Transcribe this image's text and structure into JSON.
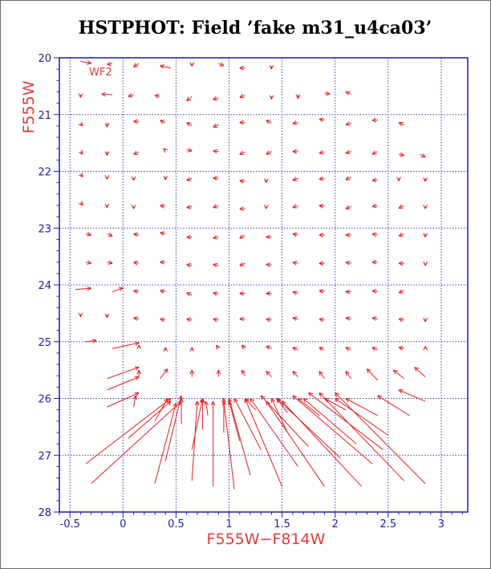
{
  "chart_data": {
    "type": "vector_field",
    "title": "HSTPHOT: Field ’fake m31_u4ca03’",
    "xlabel": "F555W−F814W",
    "ylabel": "F555W",
    "annotation": "WF2",
    "xlim": [
      -0.6,
      3.25
    ],
    "ylim": [
      28,
      20
    ],
    "x_ticks": [
      "-0.5",
      "0",
      "0.5",
      "1",
      "1.5",
      "2",
      "2.5",
      "3"
    ],
    "x_tick_values": [
      -0.5,
      0,
      0.5,
      1,
      1.5,
      2,
      2.5,
      3
    ],
    "y_ticks": [
      "20",
      "21",
      "22",
      "23",
      "24",
      "25",
      "26",
      "27",
      "28"
    ],
    "y_tick_values": [
      20,
      21,
      22,
      23,
      24,
      25,
      26,
      27,
      28
    ],
    "grid": true,
    "colors": {
      "axis": "#1f1f9f",
      "grid": "#3c3cd2",
      "vectors": "#e02020",
      "labels": "#e03c3c",
      "title": "#000000"
    },
    "vectors": [
      {
        "x": -0.4,
        "y": 20.06,
        "x2": -0.3,
        "y2": 20.1
      },
      {
        "x": -0.1,
        "y": 20.1,
        "x2": -0.15,
        "y2": 20.12
      },
      {
        "x": 0.15,
        "y": 20.1,
        "x2": 0.1,
        "y2": 20.16
      },
      {
        "x": 0.45,
        "y": 20.18,
        "x2": 0.35,
        "y2": 20.14
      },
      {
        "x": 0.65,
        "y": 20.1,
        "x2": 0.65,
        "y2": 20.15
      },
      {
        "x": 0.9,
        "y": 20.1,
        "x2": 0.95,
        "y2": 20.14
      },
      {
        "x": 1.15,
        "y": 20.18,
        "x2": 1.1,
        "y2": 20.18
      },
      {
        "x": 1.4,
        "y": 20.15,
        "x2": 1.4,
        "y2": 20.2
      },
      {
        "x": -0.4,
        "y": 20.65,
        "x2": -0.4,
        "y2": 20.7
      },
      {
        "x": -0.1,
        "y": 20.65,
        "x2": -0.2,
        "y2": 20.64
      },
      {
        "x": 0.1,
        "y": 20.65,
        "x2": 0.05,
        "y2": 20.68
      },
      {
        "x": 0.35,
        "y": 20.68,
        "x2": 0.3,
        "y2": 20.66
      },
      {
        "x": 0.65,
        "y": 20.68,
        "x2": 0.6,
        "y2": 20.76
      },
      {
        "x": 0.9,
        "y": 20.7,
        "x2": 0.85,
        "y2": 20.74
      },
      {
        "x": 1.15,
        "y": 20.66,
        "x2": 1.1,
        "y2": 20.7
      },
      {
        "x": 1.4,
        "y": 20.68,
        "x2": 1.4,
        "y2": 20.73
      },
      {
        "x": 1.65,
        "y": 20.65,
        "x2": 1.65,
        "y2": 20.72
      },
      {
        "x": 1.9,
        "y": 20.62,
        "x2": 1.95,
        "y2": 20.64
      },
      {
        "x": 2.15,
        "y": 20.64,
        "x2": 2.1,
        "y2": 20.6
      },
      {
        "x": -0.4,
        "y": 21.16,
        "x2": -0.38,
        "y2": 21.2
      },
      {
        "x": -0.15,
        "y": 21.15,
        "x2": -0.15,
        "y2": 21.22
      },
      {
        "x": 0.15,
        "y": 21.12,
        "x2": 0.1,
        "y2": 21.12
      },
      {
        "x": 0.4,
        "y": 21.15,
        "x2": 0.35,
        "y2": 21.1
      },
      {
        "x": 0.65,
        "y": 21.2,
        "x2": 0.6,
        "y2": 21.14
      },
      {
        "x": 0.9,
        "y": 21.18,
        "x2": 0.85,
        "y2": 21.22
      },
      {
        "x": 1.15,
        "y": 21.14,
        "x2": 1.1,
        "y2": 21.14
      },
      {
        "x": 1.4,
        "y": 21.15,
        "x2": 1.35,
        "y2": 21.1
      },
      {
        "x": 1.65,
        "y": 21.14,
        "x2": 1.6,
        "y2": 21.16
      },
      {
        "x": 1.9,
        "y": 21.1,
        "x2": 1.85,
        "y2": 21.08
      },
      {
        "x": 2.15,
        "y": 21.15,
        "x2": 2.1,
        "y2": 21.18
      },
      {
        "x": 2.4,
        "y": 21.1,
        "x2": 2.35,
        "y2": 21.1
      },
      {
        "x": 2.65,
        "y": 21.18,
        "x2": 2.6,
        "y2": 21.14
      },
      {
        "x": -0.4,
        "y": 21.65,
        "x2": -0.38,
        "y2": 21.7
      },
      {
        "x": -0.15,
        "y": 21.65,
        "x2": -0.15,
        "y2": 21.72
      },
      {
        "x": 0.15,
        "y": 21.66,
        "x2": 0.1,
        "y2": 21.7
      },
      {
        "x": 0.4,
        "y": 21.63,
        "x2": 0.38,
        "y2": 21.6
      },
      {
        "x": 0.6,
        "y": 21.62,
        "x2": 0.65,
        "y2": 21.64
      },
      {
        "x": 0.9,
        "y": 21.65,
        "x2": 0.85,
        "y2": 21.64
      },
      {
        "x": 1.15,
        "y": 21.66,
        "x2": 1.1,
        "y2": 21.7
      },
      {
        "x": 1.4,
        "y": 21.65,
        "x2": 1.35,
        "y2": 21.7
      },
      {
        "x": 1.65,
        "y": 21.65,
        "x2": 1.6,
        "y2": 21.65
      },
      {
        "x": 1.9,
        "y": 21.66,
        "x2": 1.85,
        "y2": 21.68
      },
      {
        "x": 2.15,
        "y": 21.65,
        "x2": 2.1,
        "y2": 21.68
      },
      {
        "x": 2.4,
        "y": 21.65,
        "x2": 2.35,
        "y2": 21.7
      },
      {
        "x": 2.6,
        "y": 21.7,
        "x2": 2.65,
        "y2": 21.72
      },
      {
        "x": 2.8,
        "y": 21.7,
        "x2": 2.85,
        "y2": 21.75
      },
      {
        "x": -0.4,
        "y": 22.05,
        "x2": -0.38,
        "y2": 22.1
      },
      {
        "x": -0.15,
        "y": 22.1,
        "x2": -0.15,
        "y2": 22.14
      },
      {
        "x": 0.1,
        "y": 22.12,
        "x2": 0.1,
        "y2": 22.16
      },
      {
        "x": 0.4,
        "y": 22.1,
        "x2": 0.4,
        "y2": 22.15
      },
      {
        "x": 0.65,
        "y": 22.12,
        "x2": 0.6,
        "y2": 22.16
      },
      {
        "x": 0.9,
        "y": 22.12,
        "x2": 0.85,
        "y2": 22.12
      },
      {
        "x": 1.15,
        "y": 22.18,
        "x2": 1.1,
        "y2": 22.16
      },
      {
        "x": 1.35,
        "y": 22.15,
        "x2": 1.35,
        "y2": 22.2
      },
      {
        "x": 1.65,
        "y": 22.12,
        "x2": 1.6,
        "y2": 22.16
      },
      {
        "x": 1.9,
        "y": 22.12,
        "x2": 1.85,
        "y2": 22.14
      },
      {
        "x": 2.15,
        "y": 22.1,
        "x2": 2.1,
        "y2": 22.15
      },
      {
        "x": 2.4,
        "y": 22.15,
        "x2": 2.35,
        "y2": 22.16
      },
      {
        "x": 2.6,
        "y": 22.12,
        "x2": 2.6,
        "y2": 22.17
      },
      {
        "x": 2.85,
        "y": 22.12,
        "x2": 2.85,
        "y2": 22.18
      },
      {
        "x": -0.4,
        "y": 22.55,
        "x2": -0.38,
        "y2": 22.6
      },
      {
        "x": -0.15,
        "y": 22.6,
        "x2": -0.15,
        "y2": 22.64
      },
      {
        "x": 0.1,
        "y": 22.62,
        "x2": 0.1,
        "y2": 22.66
      },
      {
        "x": 0.4,
        "y": 22.62,
        "x2": 0.35,
        "y2": 22.6
      },
      {
        "x": 0.65,
        "y": 22.62,
        "x2": 0.6,
        "y2": 22.64
      },
      {
        "x": 0.9,
        "y": 22.6,
        "x2": 0.85,
        "y2": 22.64
      },
      {
        "x": 1.15,
        "y": 22.66,
        "x2": 1.1,
        "y2": 22.66
      },
      {
        "x": 1.35,
        "y": 22.62,
        "x2": 1.35,
        "y2": 22.66
      },
      {
        "x": 1.65,
        "y": 22.6,
        "x2": 1.6,
        "y2": 22.64
      },
      {
        "x": 1.9,
        "y": 22.62,
        "x2": 1.85,
        "y2": 22.6
      },
      {
        "x": 2.15,
        "y": 22.62,
        "x2": 2.1,
        "y2": 22.66
      },
      {
        "x": 2.4,
        "y": 22.6,
        "x2": 2.35,
        "y2": 22.62
      },
      {
        "x": 2.65,
        "y": 22.6,
        "x2": 2.6,
        "y2": 22.65
      },
      {
        "x": 2.85,
        "y": 22.62,
        "x2": 2.85,
        "y2": 22.66
      },
      {
        "x": -0.35,
        "y": 23.1,
        "x2": -0.3,
        "y2": 23.12
      },
      {
        "x": -0.15,
        "y": 23.1,
        "x2": -0.1,
        "y2": 23.14
      },
      {
        "x": 0.15,
        "y": 23.12,
        "x2": 0.1,
        "y2": 23.1
      },
      {
        "x": 0.4,
        "y": 23.1,
        "x2": 0.35,
        "y2": 23.08
      },
      {
        "x": 0.65,
        "y": 23.16,
        "x2": 0.6,
        "y2": 23.16
      },
      {
        "x": 0.9,
        "y": 23.15,
        "x2": 0.85,
        "y2": 23.18
      },
      {
        "x": 1.15,
        "y": 23.12,
        "x2": 1.1,
        "y2": 23.18
      },
      {
        "x": 1.4,
        "y": 23.15,
        "x2": 1.35,
        "y2": 23.16
      },
      {
        "x": 1.65,
        "y": 23.12,
        "x2": 1.6,
        "y2": 23.1
      },
      {
        "x": 1.9,
        "y": 23.12,
        "x2": 1.85,
        "y2": 23.12
      },
      {
        "x": 2.15,
        "y": 23.12,
        "x2": 2.1,
        "y2": 23.12
      },
      {
        "x": 2.4,
        "y": 23.12,
        "x2": 2.35,
        "y2": 23.1
      },
      {
        "x": 2.65,
        "y": 23.1,
        "x2": 2.6,
        "y2": 23.14
      },
      {
        "x": 2.85,
        "y": 23.1,
        "x2": 2.85,
        "y2": 23.16
      },
      {
        "x": -0.35,
        "y": 23.6,
        "x2": -0.3,
        "y2": 23.62
      },
      {
        "x": -0.15,
        "y": 23.6,
        "x2": -0.1,
        "y2": 23.62
      },
      {
        "x": 0.15,
        "y": 23.62,
        "x2": 0.1,
        "y2": 23.6
      },
      {
        "x": 0.4,
        "y": 23.6,
        "x2": 0.35,
        "y2": 23.6
      },
      {
        "x": 0.65,
        "y": 23.66,
        "x2": 0.6,
        "y2": 23.64
      },
      {
        "x": 0.9,
        "y": 23.66,
        "x2": 0.85,
        "y2": 23.64
      },
      {
        "x": 1.15,
        "y": 23.62,
        "x2": 1.1,
        "y2": 23.66
      },
      {
        "x": 1.4,
        "y": 23.65,
        "x2": 1.35,
        "y2": 23.64
      },
      {
        "x": 1.65,
        "y": 23.62,
        "x2": 1.6,
        "y2": 23.6
      },
      {
        "x": 1.9,
        "y": 23.62,
        "x2": 1.85,
        "y2": 23.62
      },
      {
        "x": 2.15,
        "y": 23.62,
        "x2": 2.1,
        "y2": 23.6
      },
      {
        "x": 2.4,
        "y": 23.6,
        "x2": 2.35,
        "y2": 23.6
      },
      {
        "x": 2.65,
        "y": 23.62,
        "x2": 2.6,
        "y2": 23.62
      },
      {
        "x": 2.85,
        "y": 23.62,
        "x2": 2.85,
        "y2": 23.66
      },
      {
        "x": -0.45,
        "y": 24.08,
        "x2": -0.3,
        "y2": 24.06
      },
      {
        "x": -0.1,
        "y": 24.12,
        "x2": 0.0,
        "y2": 24.05
      },
      {
        "x": 0.15,
        "y": 24.12,
        "x2": 0.1,
        "y2": 24.1
      },
      {
        "x": 0.4,
        "y": 24.12,
        "x2": 0.35,
        "y2": 24.1
      },
      {
        "x": 0.65,
        "y": 24.18,
        "x2": 0.6,
        "y2": 24.14
      },
      {
        "x": 0.9,
        "y": 24.16,
        "x2": 0.85,
        "y2": 24.14
      },
      {
        "x": 1.15,
        "y": 24.15,
        "x2": 1.1,
        "y2": 24.15
      },
      {
        "x": 1.4,
        "y": 24.15,
        "x2": 1.35,
        "y2": 24.15
      },
      {
        "x": 1.65,
        "y": 24.15,
        "x2": 1.6,
        "y2": 24.12
      },
      {
        "x": 1.9,
        "y": 24.12,
        "x2": 1.85,
        "y2": 24.1
      },
      {
        "x": 2.15,
        "y": 24.12,
        "x2": 2.1,
        "y2": 24.12
      },
      {
        "x": 2.4,
        "y": 24.12,
        "x2": 2.35,
        "y2": 24.1
      },
      {
        "x": 2.65,
        "y": 24.1,
        "x2": 2.6,
        "y2": 24.14
      },
      {
        "x": -0.4,
        "y": 24.52,
        "x2": -0.4,
        "y2": 24.56
      },
      {
        "x": -0.15,
        "y": 24.52,
        "x2": -0.15,
        "y2": 24.58
      },
      {
        "x": 0.15,
        "y": 24.6,
        "x2": 0.1,
        "y2": 24.58
      },
      {
        "x": 0.4,
        "y": 24.62,
        "x2": 0.35,
        "y2": 24.6
      },
      {
        "x": 0.65,
        "y": 24.62,
        "x2": 0.6,
        "y2": 24.6
      },
      {
        "x": 0.9,
        "y": 24.62,
        "x2": 0.85,
        "y2": 24.6
      },
      {
        "x": 1.15,
        "y": 24.6,
        "x2": 1.1,
        "y2": 24.6
      },
      {
        "x": 1.4,
        "y": 24.62,
        "x2": 1.35,
        "y2": 24.6
      },
      {
        "x": 1.65,
        "y": 24.6,
        "x2": 1.6,
        "y2": 24.58
      },
      {
        "x": 1.9,
        "y": 24.62,
        "x2": 1.85,
        "y2": 24.6
      },
      {
        "x": 2.15,
        "y": 24.6,
        "x2": 2.1,
        "y2": 24.58
      },
      {
        "x": 2.4,
        "y": 24.6,
        "x2": 2.35,
        "y2": 24.58
      },
      {
        "x": 2.65,
        "y": 24.62,
        "x2": 2.6,
        "y2": 24.6
      },
      {
        "x": 2.85,
        "y": 24.6,
        "x2": 2.85,
        "y2": 24.65
      },
      {
        "x": -0.35,
        "y": 25.0,
        "x2": -0.25,
        "y2": 24.98
      },
      {
        "x": -0.1,
        "y": 25.12,
        "x2": 0.15,
        "y2": 25.02
      },
      {
        "x": 0.15,
        "y": 25.1,
        "x2": 0.15,
        "y2": 25.06
      },
      {
        "x": 0.4,
        "y": 25.15,
        "x2": 0.4,
        "y2": 25.1
      },
      {
        "x": 0.65,
        "y": 25.15,
        "x2": 0.65,
        "y2": 25.1
      },
      {
        "x": 0.9,
        "y": 25.12,
        "x2": 0.88,
        "y2": 25.06
      },
      {
        "x": 1.15,
        "y": 25.12,
        "x2": 1.12,
        "y2": 25.06
      },
      {
        "x": 1.4,
        "y": 25.12,
        "x2": 1.35,
        "y2": 25.08
      },
      {
        "x": 1.65,
        "y": 25.15,
        "x2": 1.6,
        "y2": 25.1
      },
      {
        "x": 1.9,
        "y": 25.15,
        "x2": 1.85,
        "y2": 25.1
      },
      {
        "x": 2.15,
        "y": 25.15,
        "x2": 2.1,
        "y2": 25.1
      },
      {
        "x": 2.4,
        "y": 25.15,
        "x2": 2.35,
        "y2": 25.1
      },
      {
        "x": 2.65,
        "y": 25.12,
        "x2": 2.6,
        "y2": 25.1
      },
      {
        "x": 2.85,
        "y": 25.12,
        "x2": 2.85,
        "y2": 25.08
      },
      {
        "x": -0.15,
        "y": 25.65,
        "x2": 0.15,
        "y2": 25.45
      },
      {
        "x": 0.15,
        "y": 25.62,
        "x2": 0.15,
        "y2": 25.5
      },
      {
        "x": 0.35,
        "y": 25.65,
        "x2": 0.42,
        "y2": 25.48
      },
      {
        "x": 0.65,
        "y": 25.62,
        "x2": 0.65,
        "y2": 25.5
      },
      {
        "x": 0.9,
        "y": 25.62,
        "x2": 0.9,
        "y2": 25.5
      },
      {
        "x": 1.15,
        "y": 25.6,
        "x2": 1.12,
        "y2": 25.5
      },
      {
        "x": 1.4,
        "y": 25.62,
        "x2": 1.35,
        "y2": 25.52
      },
      {
        "x": 1.65,
        "y": 25.62,
        "x2": 1.6,
        "y2": 25.52
      },
      {
        "x": 1.9,
        "y": 25.65,
        "x2": 1.85,
        "y2": 25.52
      },
      {
        "x": 2.15,
        "y": 25.65,
        "x2": 2.1,
        "y2": 25.52
      },
      {
        "x": 2.4,
        "y": 25.68,
        "x2": 2.3,
        "y2": 25.48
      },
      {
        "x": 2.65,
        "y": 25.65,
        "x2": 2.55,
        "y2": 25.5
      },
      {
        "x": 2.85,
        "y": 25.62,
        "x2": 2.75,
        "y2": 25.45
      },
      {
        "x": -0.15,
        "y": 25.85,
        "x2": 0.15,
        "y2": 25.62
      },
      {
        "x": -0.15,
        "y": 26.15,
        "x2": 0.15,
        "y2": 25.9
      },
      {
        "x": 0.1,
        "y": 26.15,
        "x2": 0.12,
        "y2": 25.95
      },
      {
        "x": -0.35,
        "y": 27.15,
        "x2": 0.45,
        "y2": 26.0
      },
      {
        "x": -0.3,
        "y": 27.5,
        "x2": 0.55,
        "y2": 26.05
      },
      {
        "x": 0.3,
        "y": 27.5,
        "x2": 0.5,
        "y2": 26.08
      },
      {
        "x": 0.4,
        "y": 27.1,
        "x2": 0.55,
        "y2": 25.95
      },
      {
        "x": 0.05,
        "y": 26.7,
        "x2": 0.45,
        "y2": 26.05
      },
      {
        "x": 0.65,
        "y": 27.45,
        "x2": 0.7,
        "y2": 26.05
      },
      {
        "x": 0.65,
        "y": 26.9,
        "x2": 0.75,
        "y2": 26.0
      },
      {
        "x": 0.85,
        "y": 27.55,
        "x2": 0.85,
        "y2": 26.05
      },
      {
        "x": 0.95,
        "y": 26.6,
        "x2": 0.95,
        "y2": 26.0
      },
      {
        "x": 1.05,
        "y": 27.6,
        "x2": 0.95,
        "y2": 26.05
      },
      {
        "x": 1.2,
        "y": 27.35,
        "x2": 1.0,
        "y2": 26.0
      },
      {
        "x": 1.3,
        "y": 26.9,
        "x2": 1.05,
        "y2": 26.0
      },
      {
        "x": 1.5,
        "y": 27.55,
        "x2": 1.15,
        "y2": 26.0
      },
      {
        "x": 1.65,
        "y": 27.2,
        "x2": 1.2,
        "y2": 26.0
      },
      {
        "x": 1.75,
        "y": 26.85,
        "x2": 1.3,
        "y2": 25.95
      },
      {
        "x": 1.9,
        "y": 27.55,
        "x2": 1.35,
        "y2": 26.05
      },
      {
        "x": 2.05,
        "y": 27.05,
        "x2": 1.45,
        "y2": 26.0
      },
      {
        "x": 2.25,
        "y": 27.55,
        "x2": 1.5,
        "y2": 26.05
      },
      {
        "x": 2.35,
        "y": 27.15,
        "x2": 1.6,
        "y2": 25.95
      },
      {
        "x": 2.45,
        "y": 26.9,
        "x2": 1.75,
        "y2": 25.9
      },
      {
        "x": 2.65,
        "y": 27.45,
        "x2": 1.85,
        "y2": 25.9
      },
      {
        "x": 2.85,
        "y": 27.5,
        "x2": 2.0,
        "y2": 25.9
      },
      {
        "x": 2.5,
        "y": 26.65,
        "x2": 2.0,
        "y2": 26.0
      },
      {
        "x": 2.2,
        "y": 26.8,
        "x2": 1.7,
        "y2": 26.0
      },
      {
        "x": 1.55,
        "y": 26.6,
        "x2": 1.4,
        "y2": 26.0
      },
      {
        "x": 1.1,
        "y": 26.75,
        "x2": 1.0,
        "y2": 26.05
      },
      {
        "x": 0.75,
        "y": 26.55,
        "x2": 0.75,
        "y2": 26.0
      },
      {
        "x": 0.55,
        "y": 26.45,
        "x2": 0.55,
        "y2": 26.0
      },
      {
        "x": 0.3,
        "y": 26.4,
        "x2": 0.42,
        "y2": 26.0
      },
      {
        "x": 0.8,
        "y": 26.3,
        "x2": 0.78,
        "y2": 26.05
      },
      {
        "x": 1.25,
        "y": 26.2,
        "x2": 1.15,
        "y2": 26.0
      },
      {
        "x": 1.55,
        "y": 26.25,
        "x2": 1.45,
        "y2": 26.0
      },
      {
        "x": 1.85,
        "y": 26.3,
        "x2": 1.65,
        "y2": 26.0
      },
      {
        "x": 2.1,
        "y": 26.2,
        "x2": 1.9,
        "y2": 26.0
      },
      {
        "x": 2.4,
        "y": 26.3,
        "x2": 2.1,
        "y2": 26.0
      },
      {
        "x": 2.7,
        "y": 26.3,
        "x2": 2.4,
        "y2": 25.95
      },
      {
        "x": 2.85,
        "y": 26.05,
        "x2": 2.6,
        "y2": 25.85
      }
    ]
  }
}
